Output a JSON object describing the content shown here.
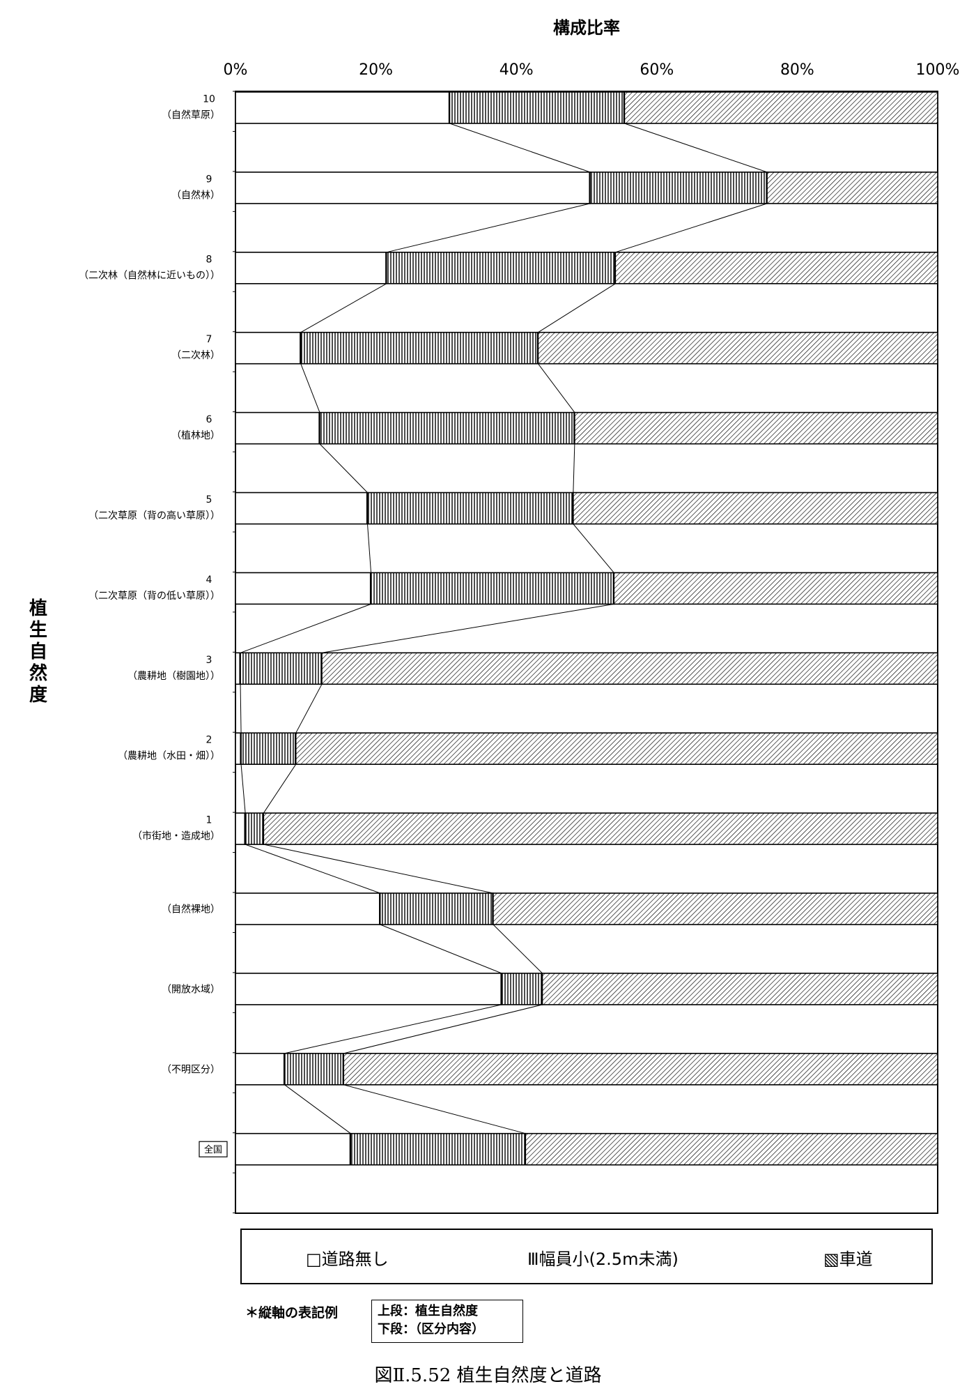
{
  "chart_data": {
    "type": "bar",
    "orientation": "horizontal",
    "stacked": "percent",
    "title": "構成比率",
    "xlabel": "構成比率",
    "ylabel": "植生自然度",
    "xlim": [
      0,
      100
    ],
    "xticks": [
      "0%",
      "20%",
      "40%",
      "60%",
      "80%",
      "100%"
    ],
    "categories": [
      {
        "top": "10",
        "bottom": "（自然草原）"
      },
      {
        "top": "9",
        "bottom": "（自然林）"
      },
      {
        "top": "8",
        "bottom": "（二次林（自然林に近いもの））"
      },
      {
        "top": "7",
        "bottom": "（二次林）"
      },
      {
        "top": "6",
        "bottom": "（植林地）"
      },
      {
        "top": "5",
        "bottom": "（二次草原（背の高い草原））"
      },
      {
        "top": "4",
        "bottom": "（二次草原（背の低い草原））"
      },
      {
        "top": "3",
        "bottom": "（農耕地（樹園地））"
      },
      {
        "top": "2",
        "bottom": "（農耕地（水田・畑））"
      },
      {
        "top": "1",
        "bottom": "（市街地・造成地）"
      },
      {
        "top": "",
        "bottom": "（自然裸地）"
      },
      {
        "top": "",
        "bottom": "（開放水域）"
      },
      {
        "top": "",
        "bottom": "（不明区分）"
      },
      {
        "top": "",
        "bottom": "全国",
        "boxed": true
      }
    ],
    "series": [
      {
        "name": "道路無し",
        "pattern": "blank",
        "values": [
          30.5,
          50.5,
          21.5,
          9.3,
          12,
          18.8,
          19.3,
          0.7,
          0.8,
          1.4,
          20.6,
          37.9,
          7.0,
          16.4
        ]
      },
      {
        "name": "幅員小(2.5m未満)",
        "pattern": "vertical",
        "values": [
          24.9,
          25.2,
          32.6,
          33.8,
          36.3,
          29.3,
          34.6,
          11.6,
          7.8,
          2.6,
          16.1,
          5.8,
          8.4,
          24.9
        ]
      },
      {
        "name": "車道",
        "pattern": "diagonal",
        "values": [
          44.6,
          24.3,
          45.9,
          56.9,
          51.7,
          51.9,
          46.1,
          87.7,
          91.4,
          96.0,
          63.3,
          56.3,
          84.6,
          58.7
        ]
      }
    ],
    "legend": {
      "placement": "bottom",
      "items": [
        "□道路無し",
        "Ⅲ幅員小(2.5m未満)",
        "▧車道"
      ]
    },
    "colors": {
      "bar_fill": "#ffffff",
      "ink": "#000000"
    }
  },
  "note": {
    "label": "＊縦軸の表記例",
    "line1": "上段：植生自然度",
    "line2": "下段：（区分内容）"
  },
  "caption": "図Ⅱ.5.52 植生自然度と道路"
}
